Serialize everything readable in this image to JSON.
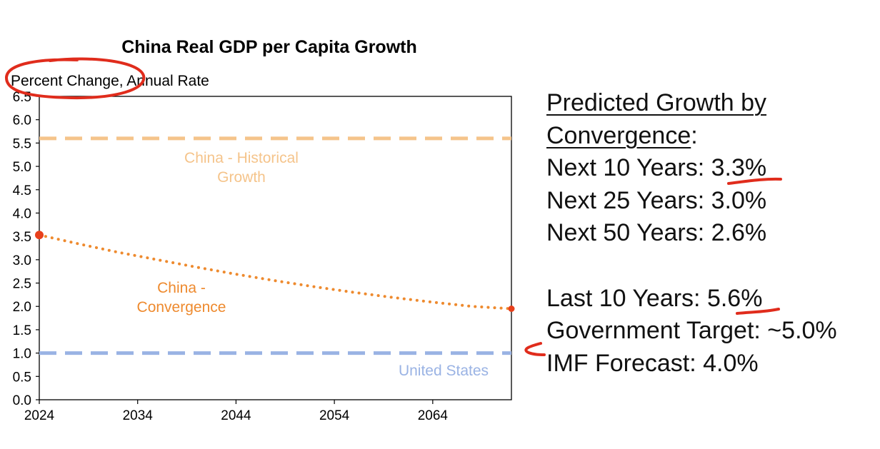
{
  "chart_data": {
    "type": "line",
    "title": "China Real GDP per Capita Growth",
    "ylabel": "Percent Change, Annual Rate",
    "xlabel": "",
    "xlim": [
      2024,
      2072
    ],
    "ylim": [
      0.0,
      6.5
    ],
    "x_ticks": [
      2024,
      2034,
      2044,
      2054,
      2064
    ],
    "y_ticks": [
      "0.0",
      "0.5",
      "1.0",
      "1.5",
      "2.0",
      "2.5",
      "3.0",
      "3.5",
      "4.0",
      "4.5",
      "5.0",
      "5.5",
      "6.0",
      "6.5"
    ],
    "grid": false,
    "legend": "none",
    "series": [
      {
        "name": "China - Historical Growth",
        "label_lines": [
          "China - Historical",
          "Growth"
        ],
        "style": "dashed",
        "color": "#f5c48b",
        "x": [
          2024,
          2072
        ],
        "y": [
          5.6,
          5.6
        ]
      },
      {
        "name": "China - Convergence",
        "label_lines": [
          "China -",
          "Convergence"
        ],
        "style": "dotted",
        "color": "#ee8a2e",
        "x": [
          2024,
          2028,
          2032,
          2036,
          2040,
          2044,
          2048,
          2052,
          2056,
          2060,
          2064,
          2068,
          2072
        ],
        "y": [
          3.53,
          3.34,
          3.16,
          3.0,
          2.84,
          2.69,
          2.55,
          2.42,
          2.3,
          2.19,
          2.09,
          2.0,
          1.95
        ]
      },
      {
        "name": "United States",
        "label_lines": [
          "United States"
        ],
        "style": "dashed",
        "color": "#9ab3e4",
        "x": [
          2024,
          2072
        ],
        "y": [
          1.0,
          1.0
        ]
      }
    ],
    "endpoint_color": "#e8401c"
  },
  "notes": {
    "heading_line1": "Predicted Growth by",
    "heading_line2": "Convergence",
    "heading_colon": ":",
    "next10_label": "Next 10 Years: ",
    "next10_value": "3.3%",
    "next25": "Next 25 Years: 3.0%",
    "next50": "Next 50 Years: 2.6%",
    "last10_label": "Last 10 Years: ",
    "last10_value": "5.6%",
    "gov_target": "Government Target: ~5.0%",
    "imf_forecast": "IMF Forecast: 4.0%"
  },
  "colors": {
    "annotation_ink": "#e02c1c",
    "axis": "#000000"
  }
}
